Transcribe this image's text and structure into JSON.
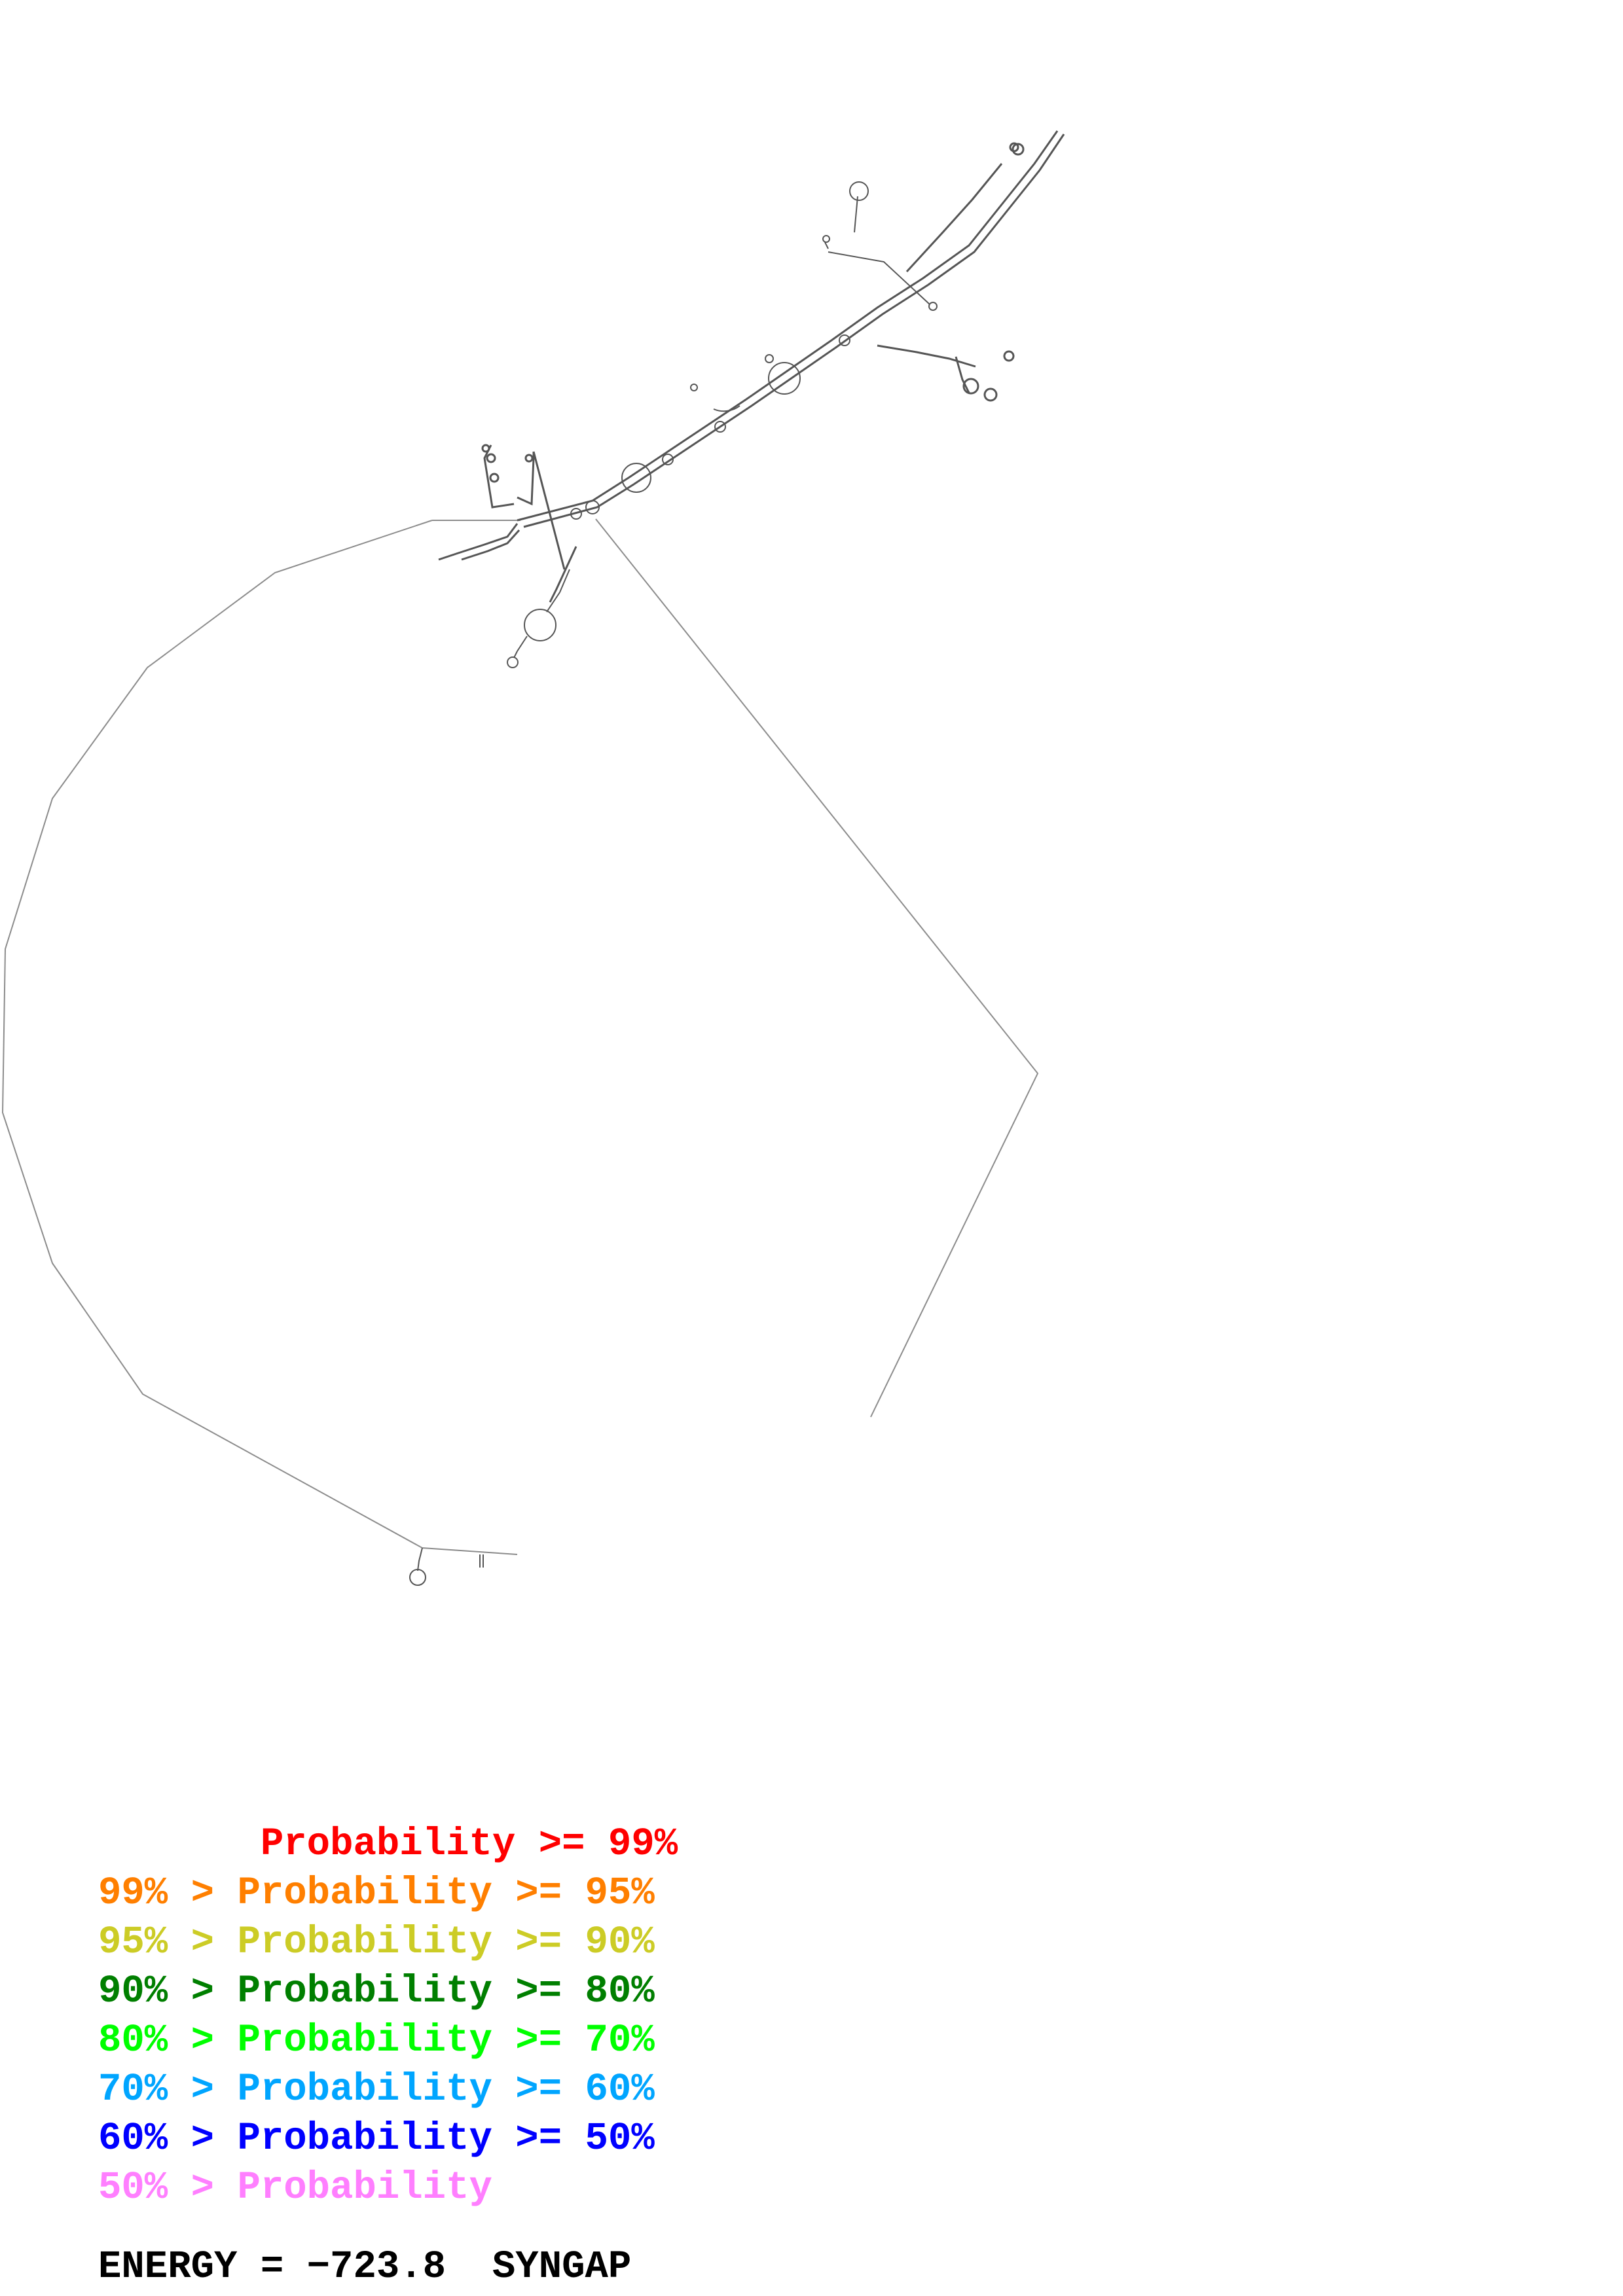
{
  "legend": [
    {
      "prefix": "       ",
      "label": "Probability >= 99%",
      "color": "#ff0000"
    },
    {
      "prefix": "99% > ",
      "label": "Probability >= 95%",
      "color": "#ff7f00"
    },
    {
      "prefix": "95% > ",
      "label": "Probability >= 90%",
      "color": "#cccc26"
    },
    {
      "prefix": "90% > ",
      "label": "Probability >= 80%",
      "color": "#007f00"
    },
    {
      "prefix": "80% > ",
      "label": "Probability >= 70%",
      "color": "#00ff00"
    },
    {
      "prefix": "70% > ",
      "label": "Probability >= 60%",
      "color": "#00a5ff"
    },
    {
      "prefix": "60% > ",
      "label": "Probability >= 50%",
      "color": "#0000ff"
    },
    {
      "prefix": "50% > ",
      "label": "Probability",
      "color": "#ff7fff"
    }
  ],
  "energy": {
    "label": "ENERGY = ",
    "value": "−723.8",
    "name": "SYNGAP"
  },
  "colors": {
    "backbone": "#8c8c8c",
    "helix": "#555555",
    "text": "#000000"
  }
}
